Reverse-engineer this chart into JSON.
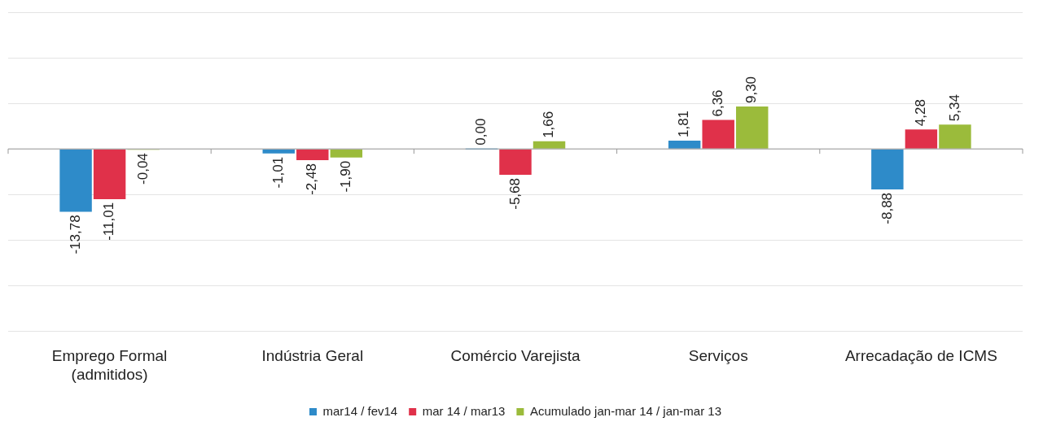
{
  "chart_data": {
    "type": "bar",
    "categories": [
      "Emprego Formal (admitidos)",
      "Indústria Geral",
      "Comércio Varejista",
      "Serviços",
      "Arrecadação de ICMS"
    ],
    "series": [
      {
        "name": "mar14 / fev14",
        "color": "#2e8bc9",
        "values": [
          -13.78,
          -1.01,
          0.0,
          1.81,
          -8.88
        ],
        "value_labels": [
          "-13,78",
          "-1,01",
          "0,00",
          "1,81",
          "-8,88"
        ]
      },
      {
        "name": "mar 14 / mar13",
        "color": "#e0314a",
        "values": [
          -11.01,
          -2.48,
          -5.68,
          6.36,
          4.28
        ],
        "value_labels": [
          "-11,01",
          "-2,48",
          "-5,68",
          "6,36",
          "4,28"
        ]
      },
      {
        "name": "Acumulado jan-mar 14 / jan-mar 13",
        "color": "#9bbb3b",
        "values": [
          -0.04,
          -1.9,
          1.66,
          9.3,
          5.34
        ],
        "value_labels": [
          "-0,04",
          "-1,90",
          "1,66",
          "9,30",
          "5,34"
        ]
      }
    ],
    "ylim": [
      -40,
      30
    ],
    "yticks": [
      {
        "value": -40,
        "label": null
      },
      {
        "value": -30,
        "label": null
      },
      {
        "value": -20,
        "label": null
      },
      {
        "value": -10,
        "label": null
      },
      {
        "value": 0,
        "label": null
      },
      {
        "value": 10,
        "label": null
      },
      {
        "value": 20,
        "label": null
      },
      {
        "value": 30,
        "label": null
      }
    ],
    "grid": "y",
    "legend": "bottom",
    "tick_labels": "x"
  }
}
